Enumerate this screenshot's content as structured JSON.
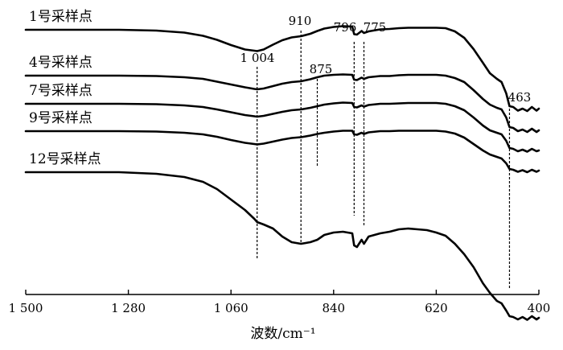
{
  "chart_data": {
    "type": "line",
    "title": "",
    "xlabel": "波数/cm⁻¹",
    "ylabel": "",
    "x_reversed": true,
    "xlim": [
      1500,
      400
    ],
    "x_ticks": [
      1500,
      1280,
      1060,
      840,
      620,
      400
    ],
    "x_tick_labels": [
      "1 500",
      "1 280",
      "1 060",
      "840",
      "620",
      "400"
    ],
    "y_axis_shown": false,
    "grid": false,
    "legend": "inline labels at left of each curve",
    "x": [
      1500,
      1400,
      1300,
      1220,
      1160,
      1120,
      1090,
      1060,
      1030,
      1010,
      1004,
      990,
      970,
      950,
      930,
      910,
      890,
      875,
      860,
      840,
      820,
      800,
      796,
      790,
      780,
      775,
      765,
      740,
      720,
      700,
      680,
      660,
      640,
      620,
      600,
      580,
      560,
      540,
      520,
      505,
      490,
      480,
      470,
      463,
      455,
      445,
      435,
      425,
      415,
      405,
      400
    ],
    "series": [
      {
        "name": "1号采样点",
        "values": [
          0.0,
          0.0,
          0.0,
          -1.0,
          -3.5,
          -7.5,
          -12.5,
          -19.0,
          -24.5,
          -26.0,
          -26.5,
          -24.5,
          -18.5,
          -13.0,
          -9.5,
          -8.0,
          -5.0,
          -1.5,
          1.5,
          3.5,
          4.5,
          4.0,
          -5.5,
          -6.0,
          -1.5,
          -4.0,
          -2.0,
          0.5,
          1.0,
          2.0,
          2.5,
          2.5,
          2.5,
          2.5,
          2.0,
          -2.0,
          -10.0,
          -24.0,
          -41.0,
          -54.0,
          -61.0,
          -65.0,
          -79.0,
          -95.0,
          -96.0,
          -100.5,
          -98.0,
          -101.0,
          -96.0,
          -100.5,
          -98.0
        ]
      },
      {
        "name": "4号采样点",
        "values": [
          0.0,
          0.0,
          0.0,
          -0.5,
          -2.0,
          -4.0,
          -7.5,
          -11.0,
          -14.5,
          -16.5,
          -17.0,
          -16.0,
          -13.0,
          -10.0,
          -8.0,
          -7.0,
          -4.5,
          -2.0,
          0.0,
          1.0,
          1.5,
          1.0,
          -5.0,
          -5.5,
          -2.5,
          -4.0,
          -2.0,
          -0.5,
          -0.5,
          0.5,
          1.0,
          1.0,
          1.0,
          1.0,
          0.0,
          -3.0,
          -8.0,
          -18.0,
          -29.0,
          -36.0,
          -40.0,
          -42.0,
          -52.0,
          -64.0,
          -65.0,
          -69.0,
          -67.0,
          -70.0,
          -66.0,
          -70.0,
          -68.0
        ]
      },
      {
        "name": "7号采样点",
        "values": [
          0.0,
          0.0,
          0.0,
          -0.5,
          -2.0,
          -4.0,
          -7.0,
          -10.5,
          -14.0,
          -15.5,
          -16.0,
          -15.0,
          -12.5,
          -10.0,
          -8.0,
          -7.0,
          -5.0,
          -3.0,
          -1.0,
          0.5,
          1.5,
          1.0,
          -4.0,
          -4.5,
          -2.0,
          -3.5,
          -1.5,
          0.0,
          0.0,
          0.5,
          1.0,
          1.0,
          1.0,
          1.0,
          0.0,
          -3.0,
          -8.0,
          -17.0,
          -27.0,
          -33.0,
          -36.0,
          -38.0,
          -46.0,
          -55.0,
          -56.0,
          -59.0,
          -57.0,
          -59.5,
          -56.0,
          -59.0,
          -58.0
        ]
      },
      {
        "name": "9号采样点",
        "values": [
          0.0,
          0.0,
          0.0,
          -0.5,
          -2.0,
          -4.0,
          -7.0,
          -11.0,
          -14.5,
          -16.0,
          -16.5,
          -15.5,
          -13.0,
          -10.5,
          -8.5,
          -7.5,
          -5.5,
          -3.5,
          -2.0,
          -0.5,
          0.5,
          0.5,
          -4.0,
          -4.5,
          -2.0,
          -3.5,
          -1.5,
          0.0,
          0.0,
          0.5,
          0.5,
          0.5,
          0.5,
          0.5,
          -0.5,
          -3.0,
          -8.0,
          -16.0,
          -24.0,
          -29.0,
          -32.0,
          -34.0,
          -40.0,
          -47.0,
          -48.0,
          -50.5,
          -48.5,
          -51.0,
          -48.0,
          -50.5,
          -49.0
        ]
      },
      {
        "name": "12号采样点",
        "values": [
          0.0,
          0.0,
          0.0,
          -2.0,
          -6.0,
          -12.0,
          -21.0,
          -34.0,
          -47.0,
          -58.0,
          -62.0,
          -65.0,
          -70.0,
          -80.0,
          -87.0,
          -89.0,
          -87.0,
          -84.0,
          -78.0,
          -75.0,
          -74.0,
          -76.0,
          -91.0,
          -93.0,
          -84.0,
          -89.0,
          -80.0,
          -76.0,
          -74.0,
          -71.0,
          -70.0,
          -71.0,
          -72.0,
          -75.0,
          -79.0,
          -89.0,
          -102.0,
          -118.0,
          -138.0,
          -150.0,
          -160.0,
          -163.0,
          -172.0,
          -179.0,
          -180.0,
          -183.0,
          -180.0,
          -183.5,
          -179.0,
          -183.0,
          -181.0
        ]
      }
    ],
    "peak_annotations": [
      {
        "label": "1 004",
        "x": 1004
      },
      {
        "label": "910",
        "x": 910
      },
      {
        "label": "875",
        "x": 875
      },
      {
        "label": "796",
        "x": 796
      },
      {
        "label": "775",
        "x": 775
      },
      {
        "label": "463",
        "x": 463
      }
    ]
  }
}
